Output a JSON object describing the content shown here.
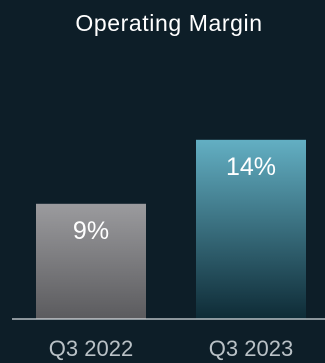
{
  "chart_data": {
    "type": "bar",
    "title": "Operating Margin",
    "categories": [
      "Q3 2022",
      "Q3 2023"
    ],
    "values": [
      9,
      14
    ],
    "value_labels": [
      "9%",
      "14%"
    ],
    "unit": "%",
    "ylim": [
      0,
      16.5
    ],
    "grid": false,
    "legend": "none",
    "colors": {
      "background": "#0d1e28",
      "baseline": "#d9dee2",
      "bar_2022_top": "#9b9b9e",
      "bar_2022_bottom": "#5b5b5e",
      "bar_2023_top": "#63afc3",
      "bar_2023_bottom": "#0e2b36"
    }
  }
}
